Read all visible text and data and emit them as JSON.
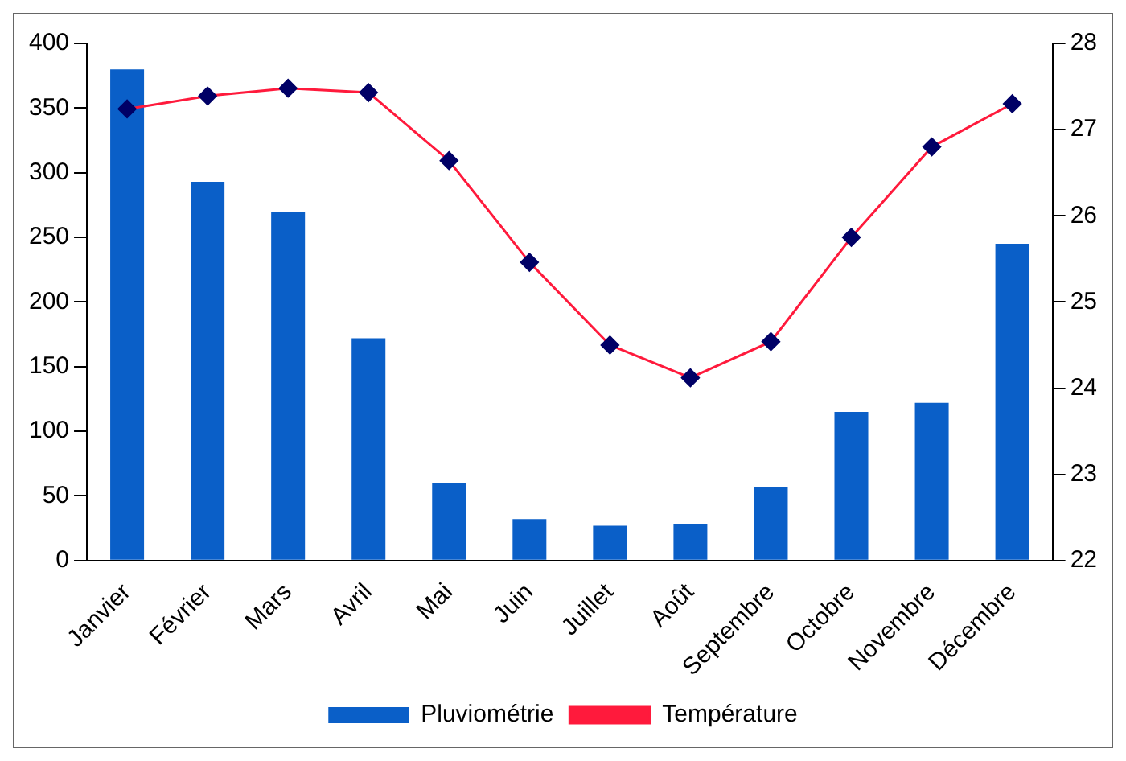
{
  "chart_data": {
    "type": "bar",
    "categories": [
      "Janvier",
      "Février",
      "Mars",
      "Avril",
      "Mai",
      "Juin",
      "Juillet",
      "Août",
      "Septembre",
      "Octobre",
      "Novembre",
      "Décembre"
    ],
    "series": [
      {
        "name": "Pluviométrie",
        "color": "#0a5fc8",
        "values": [
          380,
          293,
          270,
          172,
          60,
          32,
          27,
          28,
          57,
          115,
          122,
          245
        ]
      },
      {
        "name": "Température",
        "type": "line",
        "axis": "y2",
        "color": "#ff1a3c",
        "marker": "diamond",
        "values": [
          27.24,
          27.39,
          27.48,
          27.43,
          26.64,
          25.46,
          24.5,
          24.12,
          24.54,
          25.75,
          26.8,
          27.3
        ]
      }
    ],
    "ylim": [
      0,
      400
    ],
    "yticks": [
      0,
      50,
      100,
      150,
      200,
      250,
      300,
      350,
      400
    ],
    "y2lim": [
      22,
      28
    ],
    "y2ticks": [
      22,
      23,
      24,
      25,
      26,
      27,
      28
    ],
    "grid": false,
    "legend": "bottom"
  }
}
